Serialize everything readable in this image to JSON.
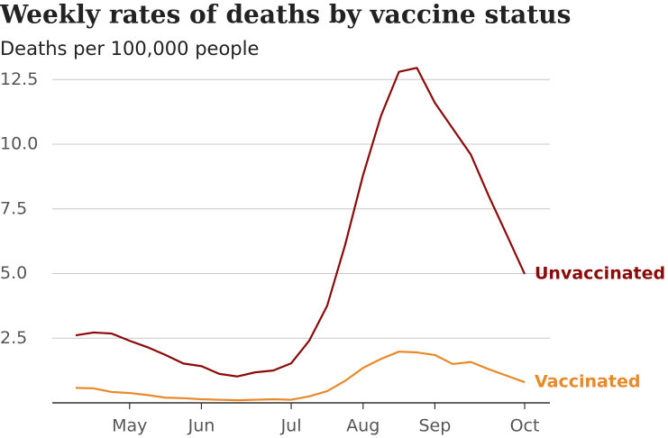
{
  "chart_data": {
    "type": "line",
    "title": "Weekly rates of deaths by vaccine status",
    "subtitle": "Deaths per 100,000 people",
    "categories": [
      null,
      null,
      null,
      "May",
      null,
      null,
      null,
      "Jun",
      null,
      null,
      null,
      null,
      "Jul",
      null,
      null,
      null,
      "Aug",
      null,
      null,
      null,
      "Sep",
      null,
      null,
      null,
      null,
      "Oct"
    ],
    "series": [
      {
        "name": "Unvaccinated",
        "color": "#8b0a0a",
        "values": [
          2.61,
          2.72,
          2.68,
          2.4,
          2.15,
          1.85,
          1.52,
          1.42,
          1.12,
          1.02,
          1.18,
          1.25,
          1.53,
          2.4,
          3.75,
          6.1,
          8.8,
          11.1,
          12.8,
          12.95,
          11.6,
          10.6,
          9.6,
          8.0,
          6.5,
          4.98
        ]
      },
      {
        "name": "Vaccinated",
        "color": "#e8892a",
        "values": [
          0.58,
          0.56,
          0.42,
          0.38,
          0.3,
          0.2,
          0.18,
          0.14,
          0.12,
          0.1,
          0.12,
          0.14,
          0.12,
          0.25,
          0.45,
          0.85,
          1.35,
          1.7,
          1.98,
          1.95,
          1.85,
          1.5,
          1.58,
          1.3,
          1.05,
          0.8
        ]
      }
    ],
    "ylim": [
      0,
      13
    ],
    "yticks": [
      2.5,
      {
        "value": 5,
        "label": "5.0"
      },
      7.5,
      {
        "value": 10,
        "label": "10.0"
      },
      12.5
    ],
    "grid": true
  }
}
